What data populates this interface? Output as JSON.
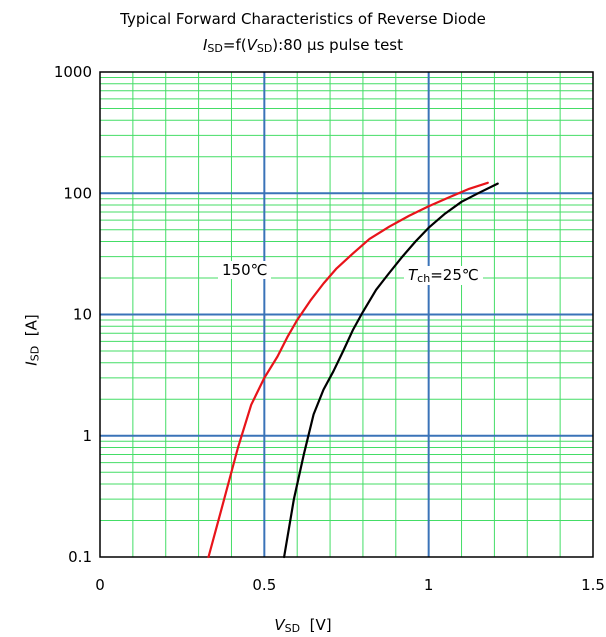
{
  "chart_data": {
    "type": "line",
    "title": "Typical Forward Characteristics of Reverse Diode",
    "subtitle": {
      "sym": "I",
      "sub": "SD",
      "mid": "=f(",
      "sym2": "V",
      "sub2": "SD",
      "rest": "):80 µs pulse test"
    },
    "xlabel": {
      "sym": "V",
      "sub": "SD",
      "unit": "[V]"
    },
    "ylabel": {
      "sym": "I",
      "sub": "SD",
      "unit": "[A]"
    },
    "xlim": [
      0,
      1.5
    ],
    "ylim": [
      0.1,
      1000
    ],
    "yscale": "log",
    "x_ticks": [
      "0",
      "0.5",
      "1",
      "1.5"
    ],
    "x_tick_values": [
      0,
      0.5,
      1,
      1.5
    ],
    "y_ticks": [
      "0.1",
      "1",
      "10",
      "100",
      "1000"
    ],
    "y_tick_values": [
      0.1,
      1,
      10,
      100,
      1000
    ],
    "grid": true,
    "colors": {
      "major_grid": "#3a73b8",
      "minor_grid": "#44dd66",
      "series_150": "#e8141a",
      "series_25": "#000000"
    },
    "series": [
      {
        "name": "150℃",
        "label": "150℃",
        "color": "#e8141a",
        "x": [
          0.33,
          0.37,
          0.42,
          0.46,
          0.5,
          0.54,
          0.57,
          0.6,
          0.64,
          0.68,
          0.72,
          0.77,
          0.82,
          0.88,
          0.94,
          1.0,
          1.06,
          1.12,
          1.18
        ],
        "y": [
          0.1,
          0.25,
          0.8,
          1.8,
          3.0,
          4.5,
          6.5,
          9.0,
          13,
          18,
          24,
          32,
          42,
          53,
          65,
          78,
          92,
          108,
          122
        ]
      },
      {
        "name": "Tch=25℃",
        "label_sym": "T",
        "label_sub": "ch",
        "label_rest": "=25℃",
        "color": "#000000",
        "x": [
          0.56,
          0.59,
          0.62,
          0.65,
          0.68,
          0.71,
          0.74,
          0.77,
          0.8,
          0.84,
          0.88,
          0.92,
          0.96,
          1.0,
          1.05,
          1.1,
          1.15,
          1.21
        ],
        "y": [
          0.1,
          0.3,
          0.7,
          1.5,
          2.4,
          3.4,
          5.0,
          7.5,
          10.5,
          16,
          22,
          30,
          40,
          52,
          68,
          85,
          100,
          120
        ]
      }
    ]
  }
}
